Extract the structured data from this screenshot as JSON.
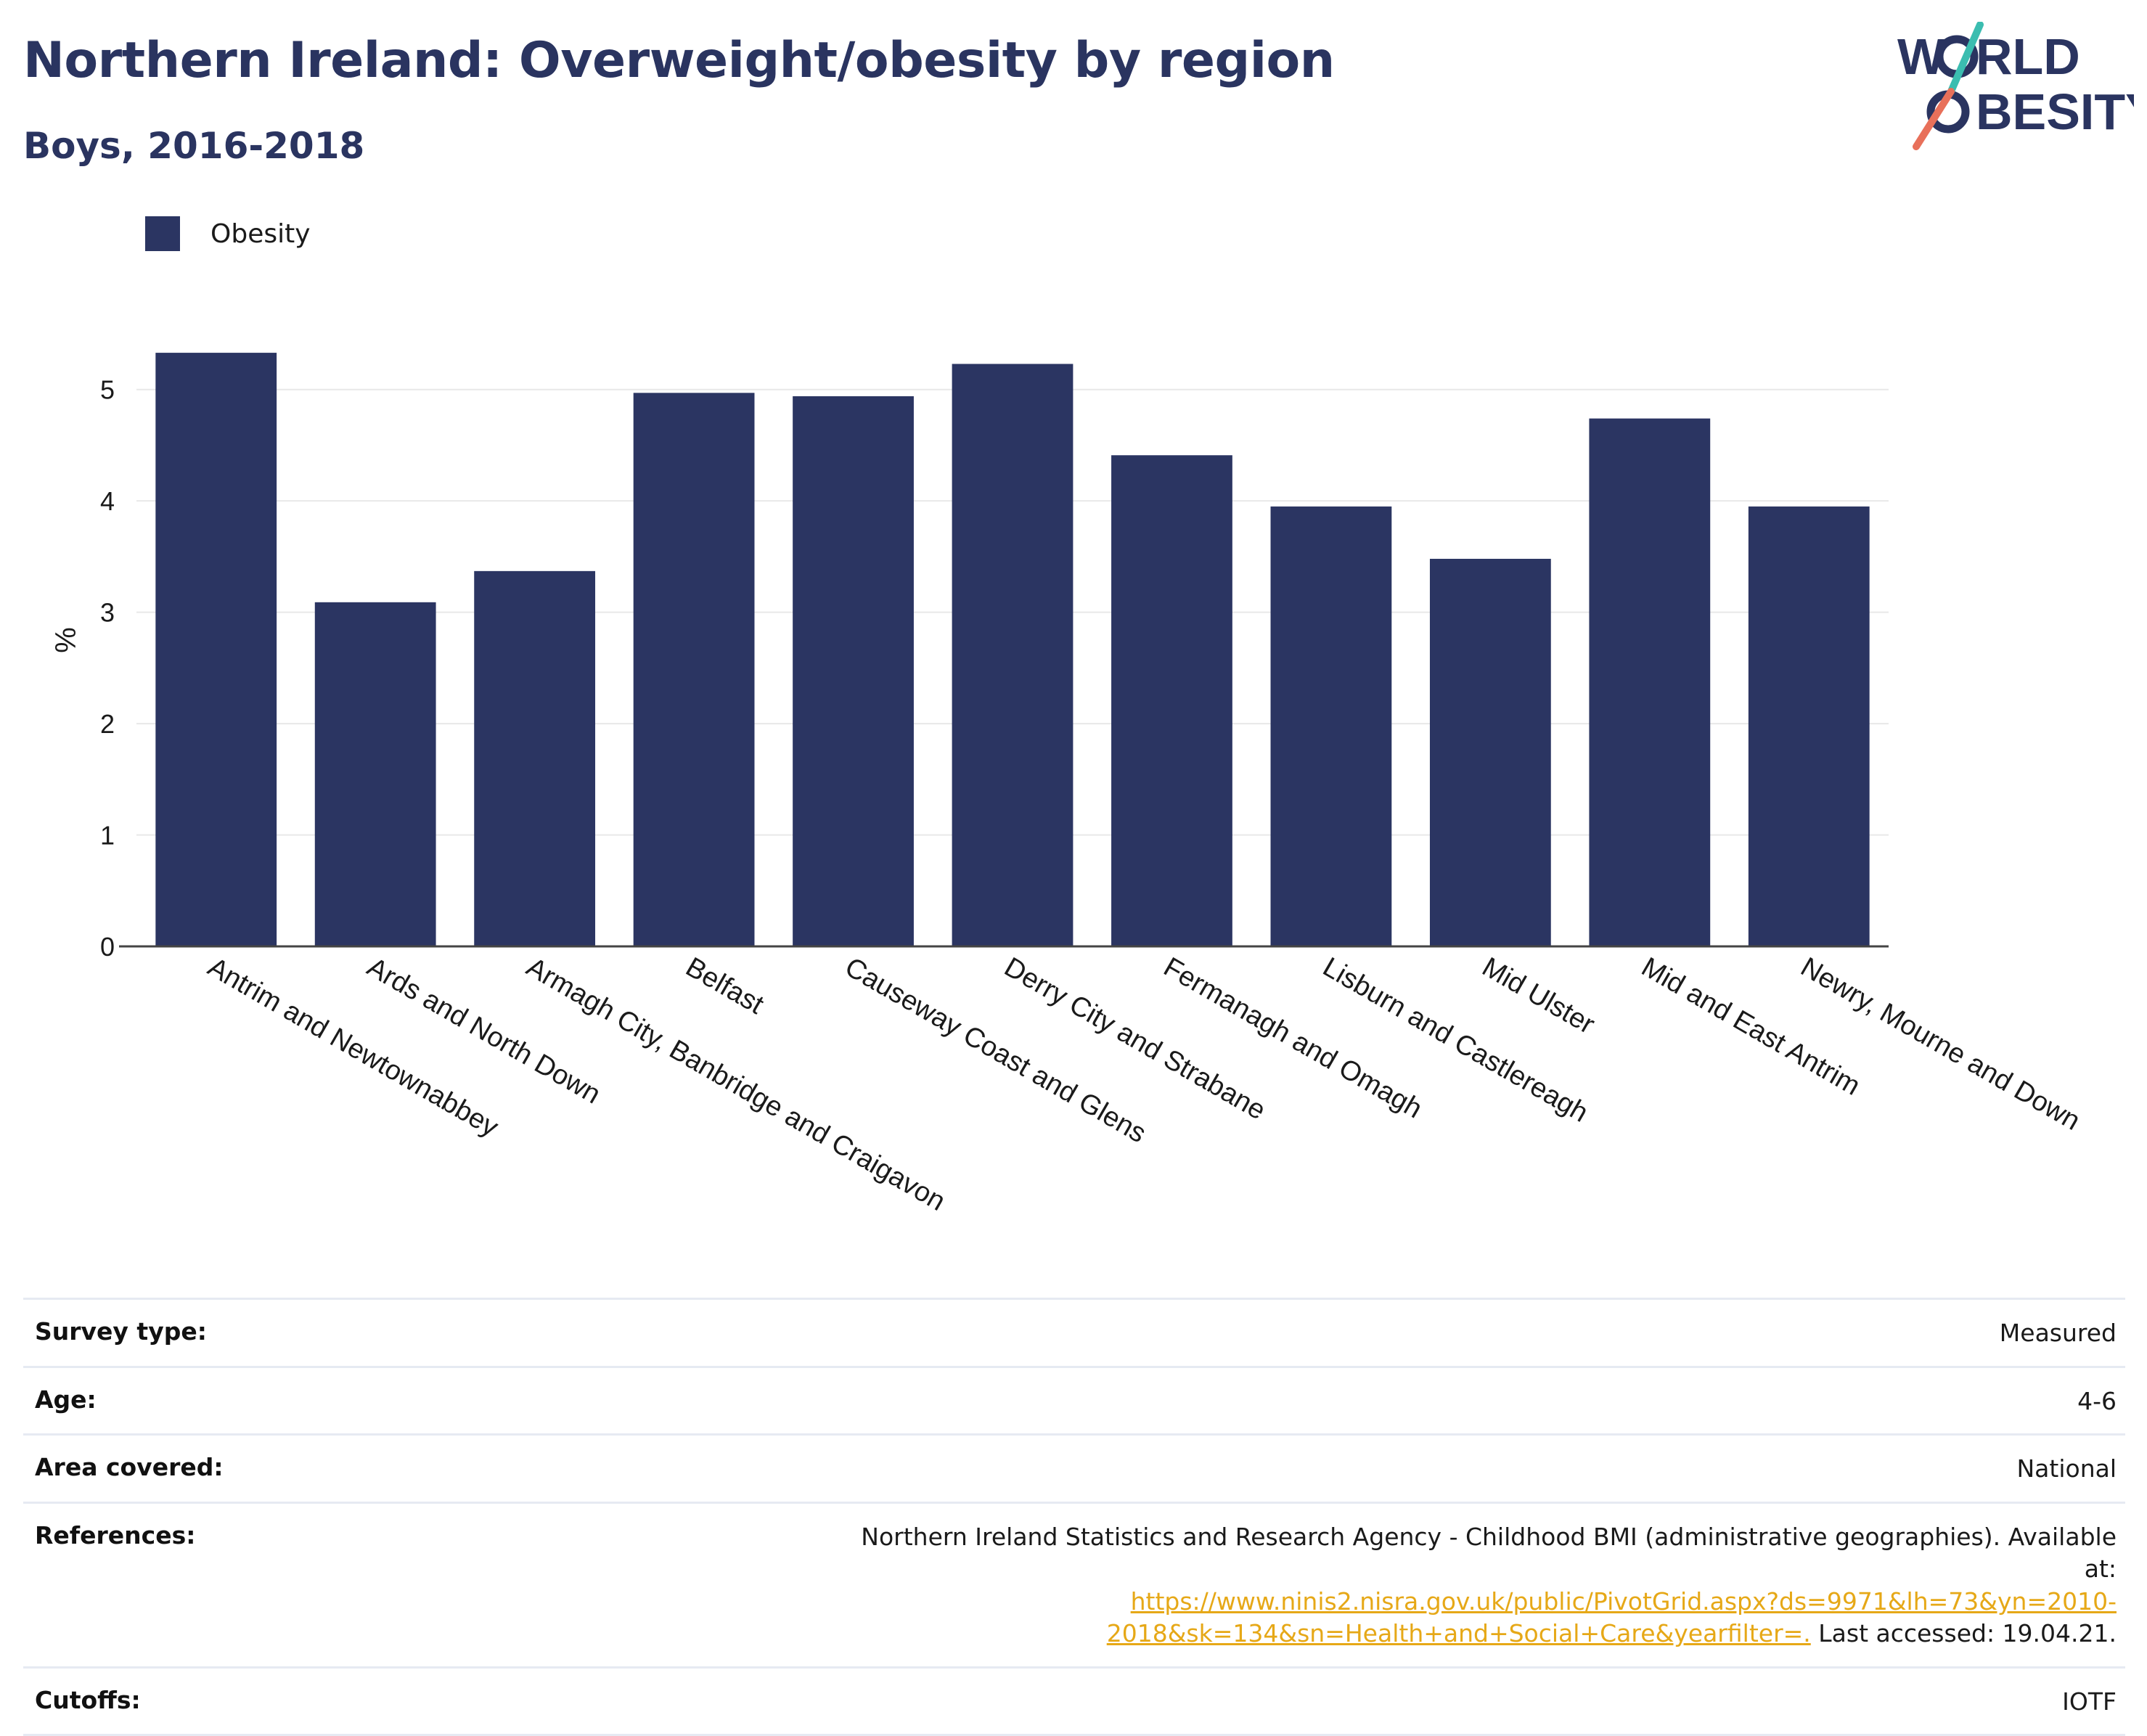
{
  "header": {
    "title": "Northern Ireland: Overweight/obesity by region",
    "subtitle": "Boys, 2016-2018"
  },
  "logo": {
    "line1_left": "W",
    "line1_right": "RLD",
    "line2_left": "",
    "line2_right": "BESITY",
    "colors": {
      "text": "#2a3460",
      "slash_top": "#3bbdb0",
      "slash_bottom": "#e8705a"
    }
  },
  "legend": {
    "items": [
      {
        "label": "Obesity",
        "color": "#2b3562"
      }
    ]
  },
  "chart_data": {
    "type": "bar",
    "ylabel": "%",
    "xlabel": "",
    "ylim": [
      0,
      5.5
    ],
    "yticks": [
      0,
      1,
      2,
      3,
      4,
      5
    ],
    "grid": true,
    "legend_position": "top-left",
    "categories": [
      "Antrim and Newtownabbey",
      "Ards and North Down",
      "Armagh City, Banbridge and Craigavon",
      "Belfast",
      "Causeway Coast and Glens",
      "Derry City and Strabane",
      "Fermanagh and Omagh",
      "Lisburn and Castlereagh",
      "Mid Ulster",
      "Mid and East Antrim",
      "Newry, Mourne and Down"
    ],
    "series": [
      {
        "name": "Obesity",
        "color": "#2b3562",
        "values": [
          5.33,
          3.09,
          3.37,
          4.97,
          4.94,
          5.23,
          4.41,
          3.95,
          3.48,
          4.74,
          3.95
        ]
      }
    ]
  },
  "info": {
    "rows": [
      {
        "label": "Survey type:",
        "value": "Measured"
      },
      {
        "label": "Age:",
        "value": "4-6"
      },
      {
        "label": "Area covered:",
        "value": "National"
      }
    ],
    "references": {
      "label": "References:",
      "text": "Northern Ireland Statistics and Research Agency - Childhood BMI (administrative geographies). Available at:",
      "link": "https://www.ninis2.nisra.gov.uk/public/PivotGrid.aspx?ds=9971&lh=73&yn=2010-2018&sk=134&sn=Health+and+Social+Care&yearfilter=.",
      "suffix": " Last accessed: 19.04.21."
    },
    "cutoffs": {
      "label": "Cutoffs:",
      "value": "IOTF"
    }
  }
}
